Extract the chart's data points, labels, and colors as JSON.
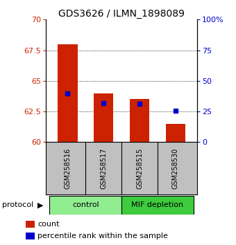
{
  "title": "GDS3626 / ILMN_1898089",
  "samples": [
    "GSM258516",
    "GSM258517",
    "GSM258515",
    "GSM258530"
  ],
  "red_values": [
    68.0,
    64.0,
    63.5,
    61.5
  ],
  "blue_values": [
    64.0,
    63.2,
    63.1,
    62.55
  ],
  "ylim_left": [
    60,
    70
  ],
  "ylim_right": [
    0,
    100
  ],
  "yticks_left": [
    60,
    62.5,
    65,
    67.5,
    70
  ],
  "yticks_right": [
    0,
    25,
    50,
    75,
    100
  ],
  "ytick_labels_left": [
    "60",
    "62.5",
    "65",
    "67.5",
    "70"
  ],
  "ytick_labels_right": [
    "0",
    "25",
    "50",
    "75",
    "100%"
  ],
  "groups": [
    {
      "label": "control",
      "indices": [
        0,
        1
      ],
      "color": "#90EE90"
    },
    {
      "label": "MIF depletion",
      "indices": [
        2,
        3
      ],
      "color": "#3ECC3E"
    }
  ],
  "protocol_label": "protocol",
  "bar_width": 0.55,
  "bar_color": "#CC2200",
  "dot_color": "#0000CC",
  "dot_size": 5,
  "background_color": "#ffffff",
  "plot_bg_color": "#ffffff",
  "label_area_color": "#C0C0C0",
  "grid_color": "#000000",
  "legend_items": [
    "count",
    "percentile rank within the sample"
  ]
}
